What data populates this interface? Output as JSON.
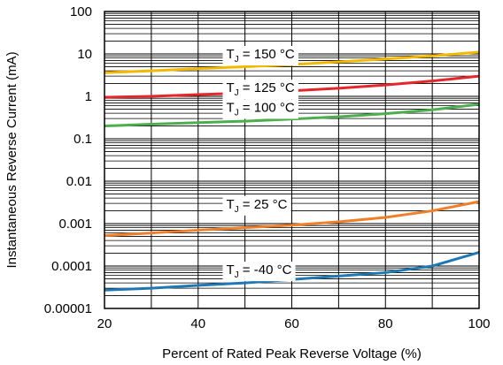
{
  "chart_data": {
    "type": "line",
    "title": "",
    "xlabel": "Percent of Rated Peak Reverse Voltage (%)",
    "ylabel": "Instantaneous Reverse Current (mA)",
    "xlim": [
      20,
      100
    ],
    "ylim": [
      1e-05,
      100
    ],
    "yscale": "log",
    "grid": true,
    "x_ticks": [
      "20",
      "40",
      "60",
      "80",
      "100"
    ],
    "y_ticks": [
      "0.00001",
      "0.0001",
      "0.001",
      "0.01",
      "0.1",
      "1",
      "10",
      "100"
    ],
    "series": [
      {
        "name": "150 °C",
        "color": "#f5b800",
        "points": [
          [
            20,
            3.6
          ],
          [
            30,
            4.0
          ],
          [
            40,
            4.5
          ],
          [
            50,
            5.0
          ],
          [
            60,
            5.6
          ],
          [
            70,
            6.5
          ],
          [
            80,
            7.6
          ],
          [
            90,
            9.0
          ],
          [
            100,
            11.0
          ]
        ]
      },
      {
        "name": "125 °C",
        "color": "#e5262b",
        "points": [
          [
            20,
            0.95
          ],
          [
            30,
            1.0
          ],
          [
            40,
            1.1
          ],
          [
            50,
            1.2
          ],
          [
            60,
            1.35
          ],
          [
            70,
            1.55
          ],
          [
            80,
            1.85
          ],
          [
            90,
            2.3
          ],
          [
            100,
            3.0
          ]
        ]
      },
      {
        "name": "100 °C",
        "color": "#4cae4c",
        "points": [
          [
            20,
            0.2
          ],
          [
            30,
            0.22
          ],
          [
            40,
            0.24
          ],
          [
            50,
            0.26
          ],
          [
            60,
            0.29
          ],
          [
            70,
            0.33
          ],
          [
            80,
            0.39
          ],
          [
            90,
            0.48
          ],
          [
            100,
            0.65
          ]
        ]
      },
      {
        "name": "25 °C",
        "color": "#f07f2a",
        "points": [
          [
            20,
            0.00052
          ],
          [
            30,
            0.0006
          ],
          [
            40,
            0.0007
          ],
          [
            50,
            0.0008
          ],
          [
            60,
            0.00092
          ],
          [
            70,
            0.0011
          ],
          [
            80,
            0.0014
          ],
          [
            90,
            0.002
          ],
          [
            100,
            0.0033
          ]
        ]
      },
      {
        "name": "-40 °C",
        "color": "#1f77b4",
        "points": [
          [
            20,
            2.7e-05
          ],
          [
            30,
            3e-05
          ],
          [
            40,
            3.5e-05
          ],
          [
            50,
            4e-05
          ],
          [
            60,
            4.8e-05
          ],
          [
            70,
            5.8e-05
          ],
          [
            80,
            7e-05
          ],
          [
            90,
            0.0001
          ],
          [
            100,
            0.00021
          ]
        ]
      }
    ],
    "annotations": [
      {
        "prefix": "T",
        "sub": "J",
        "text": " = 150 °C",
        "x": 46,
        "y": 10.0
      },
      {
        "prefix": "T",
        "sub": "J",
        "text": " = 125 °C",
        "x": 46,
        "y": 1.6
      },
      {
        "prefix": "T",
        "sub": "J",
        "text": " = 100 °C",
        "x": 46,
        "y": 0.55
      },
      {
        "prefix": "T",
        "sub": "J",
        "text": " = 25 °C",
        "x": 46,
        "y": 0.0029
      },
      {
        "prefix": "T",
        "sub": "J",
        "text": " = -40 °C",
        "x": 46,
        "y": 8.2e-05
      }
    ]
  }
}
